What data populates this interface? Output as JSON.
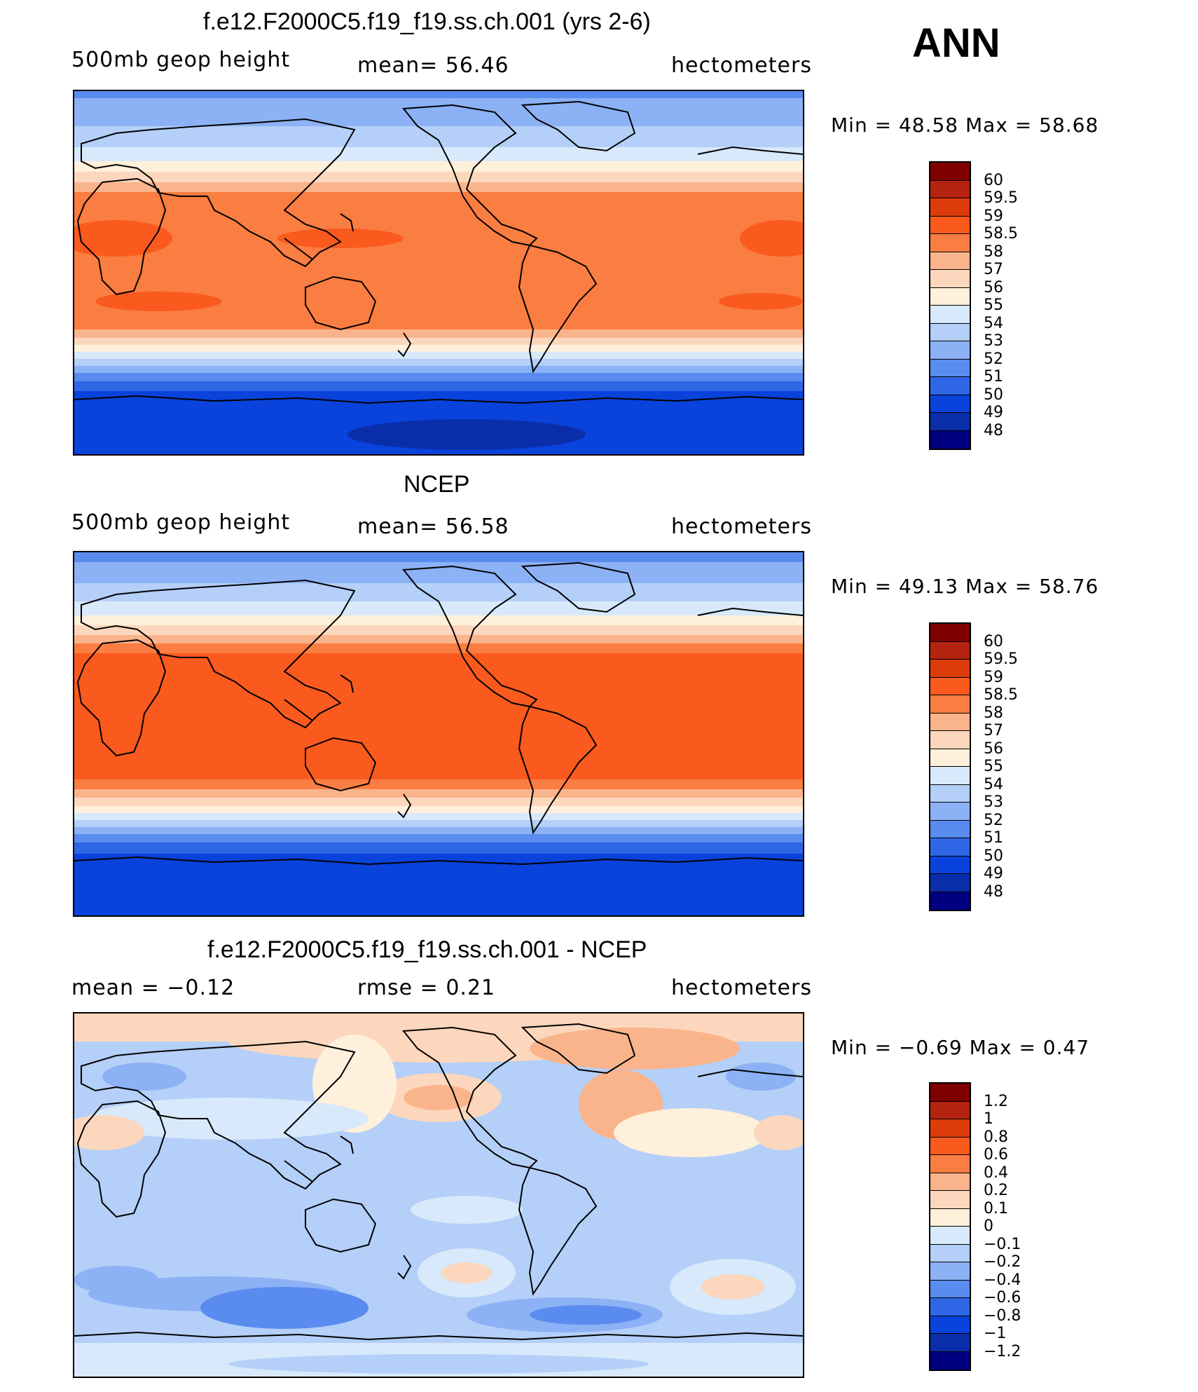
{
  "season": "ANN",
  "palette_main": [
    "#800000",
    "#b4230f",
    "#dc3c0a",
    "#fa5a1e",
    "#fa7d41",
    "#fab48c",
    "#fcd7bd",
    "#fff0dc",
    "#d7e9fa",
    "#b4cff8",
    "#8cb1f5",
    "#5a8cf0",
    "#2f66e6",
    "#0a42dc",
    "#0a2eaa",
    "#000080"
  ],
  "palette_diff": [
    "#800000",
    "#b4230f",
    "#dc3c0a",
    "#fa5a1e",
    "#fa7d41",
    "#fab48c",
    "#fcd7bd",
    "#fff0dc",
    "#d7e9fa",
    "#b4cff8",
    "#8cb1f5",
    "#5a8cf0",
    "#2f66e6",
    "#0a42dc",
    "#0a2eaa",
    "#000080"
  ],
  "panels": [
    {
      "title": "f.e12.F2000C5.f19_f19.ss.ch.001 (yrs 2-6)",
      "left_label": "500mb  geop  height",
      "center_label": "mean=   56.46",
      "right_label": "hectometers",
      "min_label": "Min  =    48.58  Max  =    58.68",
      "colorbar_labels": [
        "60",
        "59.5",
        "59",
        "58.5",
        "58",
        "57",
        "56",
        "55",
        "54",
        "53",
        "52",
        "51",
        "50",
        "49",
        "48"
      ]
    },
    {
      "title": "NCEP",
      "left_label": "500mb  geop  height",
      "center_label": "mean=   56.58",
      "right_label": "hectometers",
      "min_label": "Min  =    49.13  Max  =    58.76",
      "colorbar_labels": [
        "60",
        "59.5",
        "59",
        "58.5",
        "58",
        "57",
        "56",
        "55",
        "54",
        "53",
        "52",
        "51",
        "50",
        "49",
        "48"
      ]
    },
    {
      "title": "f.e12.F2000C5.f19_f19.ss.ch.001 - NCEP",
      "left_label": "mean  =    −0.12",
      "center_label": "rmse  =     0.21",
      "right_label": "hectometers",
      "min_label": "Min  =   −0.69  Max  =     0.47",
      "colorbar_labels": [
        "1.2",
        "1",
        "0.8",
        "0.6",
        "0.4",
        "0.2",
        "0.1",
        "0",
        "−0.1",
        "−0.2",
        "−0.4",
        "−0.6",
        "−0.8",
        "−1",
        "−1.2"
      ]
    }
  ]
}
